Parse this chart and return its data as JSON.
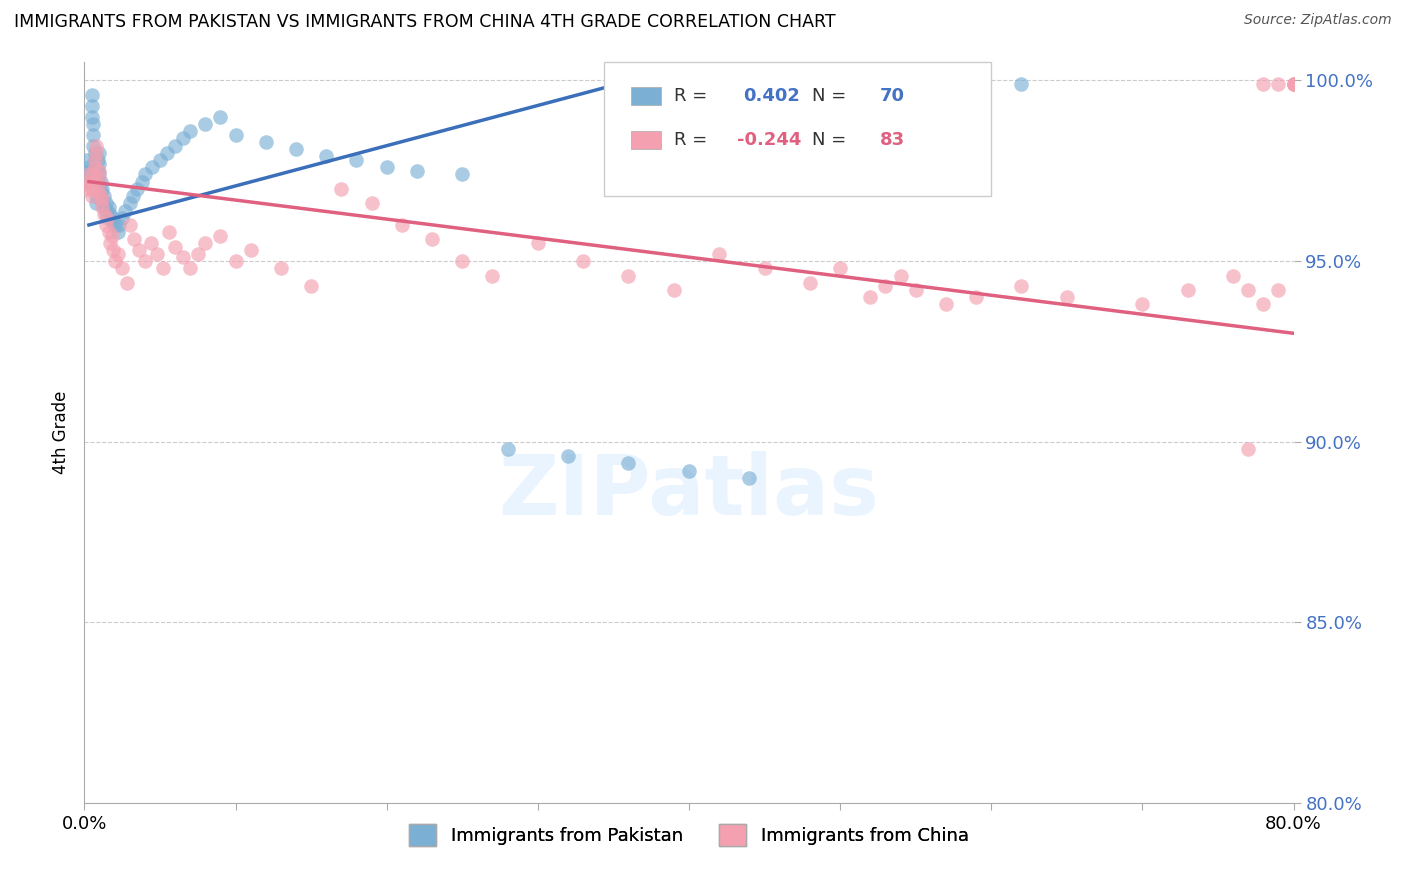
{
  "title": "IMMIGRANTS FROM PAKISTAN VS IMMIGRANTS FROM CHINA 4TH GRADE CORRELATION CHART",
  "source": "Source: ZipAtlas.com",
  "ylabel": "4th Grade",
  "xlim": [
    0.0,
    0.8
  ],
  "ylim": [
    0.8,
    1.005
  ],
  "ytick_labels": [
    "80.0%",
    "85.0%",
    "90.0%",
    "95.0%",
    "100.0%"
  ],
  "ytick_values": [
    0.8,
    0.85,
    0.9,
    0.95,
    1.0
  ],
  "xtick_values": [
    0.0,
    0.1,
    0.2,
    0.3,
    0.4,
    0.5,
    0.6,
    0.7,
    0.8
  ],
  "legend_blue_r": "0.402",
  "legend_blue_n": "70",
  "legend_pink_r": "-0.244",
  "legend_pink_n": "83",
  "blue_color": "#7bafd4",
  "pink_color": "#f4a0b0",
  "trend_blue_color": "#3b6fba",
  "trend_pink_color": "#e06080",
  "watermark": "ZIPatlas",
  "blue_trend_x0": 0.003,
  "blue_trend_y0": 0.96,
  "blue_trend_x1": 0.38,
  "blue_trend_y1": 1.002,
  "pink_trend_x0": 0.003,
  "pink_trend_y0": 0.972,
  "pink_trend_x1": 0.8,
  "pink_trend_y1": 0.93,
  "blue_scatter_x": [
    0.002,
    0.003,
    0.003,
    0.004,
    0.004,
    0.005,
    0.005,
    0.005,
    0.006,
    0.006,
    0.006,
    0.007,
    0.007,
    0.007,
    0.007,
    0.008,
    0.008,
    0.008,
    0.009,
    0.009,
    0.009,
    0.01,
    0.01,
    0.01,
    0.011,
    0.011,
    0.012,
    0.012,
    0.013,
    0.013,
    0.014,
    0.014,
    0.015,
    0.016,
    0.017,
    0.018,
    0.019,
    0.02,
    0.022,
    0.023,
    0.025,
    0.027,
    0.03,
    0.032,
    0.035,
    0.038,
    0.04,
    0.045,
    0.05,
    0.055,
    0.06,
    0.065,
    0.07,
    0.08,
    0.09,
    0.1,
    0.12,
    0.14,
    0.16,
    0.18,
    0.2,
    0.22,
    0.25,
    0.28,
    0.32,
    0.36,
    0.4,
    0.44,
    0.5,
    0.62
  ],
  "blue_scatter_y": [
    0.978,
    0.976,
    0.974,
    0.975,
    0.972,
    0.996,
    0.993,
    0.99,
    0.988,
    0.985,
    0.982,
    0.98,
    0.978,
    0.975,
    0.972,
    0.97,
    0.968,
    0.966,
    0.978,
    0.975,
    0.972,
    0.98,
    0.977,
    0.974,
    0.972,
    0.969,
    0.97,
    0.967,
    0.968,
    0.965,
    0.966,
    0.963,
    0.964,
    0.965,
    0.963,
    0.961,
    0.962,
    0.96,
    0.958,
    0.96,
    0.962,
    0.964,
    0.966,
    0.968,
    0.97,
    0.972,
    0.974,
    0.976,
    0.978,
    0.98,
    0.982,
    0.984,
    0.986,
    0.988,
    0.99,
    0.985,
    0.983,
    0.981,
    0.979,
    0.978,
    0.976,
    0.975,
    0.974,
    0.898,
    0.896,
    0.894,
    0.892,
    0.89,
    0.999,
    0.999
  ],
  "pink_scatter_x": [
    0.002,
    0.003,
    0.003,
    0.004,
    0.005,
    0.005,
    0.006,
    0.006,
    0.007,
    0.007,
    0.008,
    0.008,
    0.009,
    0.009,
    0.01,
    0.01,
    0.011,
    0.012,
    0.012,
    0.013,
    0.014,
    0.015,
    0.016,
    0.017,
    0.018,
    0.019,
    0.02,
    0.022,
    0.025,
    0.028,
    0.03,
    0.033,
    0.036,
    0.04,
    0.044,
    0.048,
    0.052,
    0.056,
    0.06,
    0.065,
    0.07,
    0.075,
    0.08,
    0.09,
    0.1,
    0.11,
    0.13,
    0.15,
    0.17,
    0.19,
    0.21,
    0.23,
    0.25,
    0.27,
    0.3,
    0.33,
    0.36,
    0.39,
    0.42,
    0.45,
    0.48,
    0.5,
    0.52,
    0.53,
    0.54,
    0.55,
    0.57,
    0.59,
    0.62,
    0.65,
    0.7,
    0.73,
    0.76,
    0.77,
    0.78,
    0.79,
    0.8,
    0.8,
    0.8,
    0.8,
    0.79,
    0.78,
    0.77
  ],
  "pink_scatter_y": [
    0.97,
    0.972,
    0.974,
    0.971,
    0.968,
    0.97,
    0.972,
    0.974,
    0.976,
    0.978,
    0.98,
    0.982,
    0.969,
    0.971,
    0.973,
    0.975,
    0.968,
    0.965,
    0.967,
    0.963,
    0.96,
    0.962,
    0.958,
    0.955,
    0.957,
    0.953,
    0.95,
    0.952,
    0.948,
    0.944,
    0.96,
    0.956,
    0.953,
    0.95,
    0.955,
    0.952,
    0.948,
    0.958,
    0.954,
    0.951,
    0.948,
    0.952,
    0.955,
    0.957,
    0.95,
    0.953,
    0.948,
    0.943,
    0.97,
    0.966,
    0.96,
    0.956,
    0.95,
    0.946,
    0.955,
    0.95,
    0.946,
    0.942,
    0.952,
    0.948,
    0.944,
    0.948,
    0.94,
    0.943,
    0.946,
    0.942,
    0.938,
    0.94,
    0.943,
    0.94,
    0.938,
    0.942,
    0.946,
    0.942,
    0.938,
    0.942,
    0.999,
    0.999,
    0.999,
    0.999,
    0.999,
    0.999,
    0.898
  ]
}
